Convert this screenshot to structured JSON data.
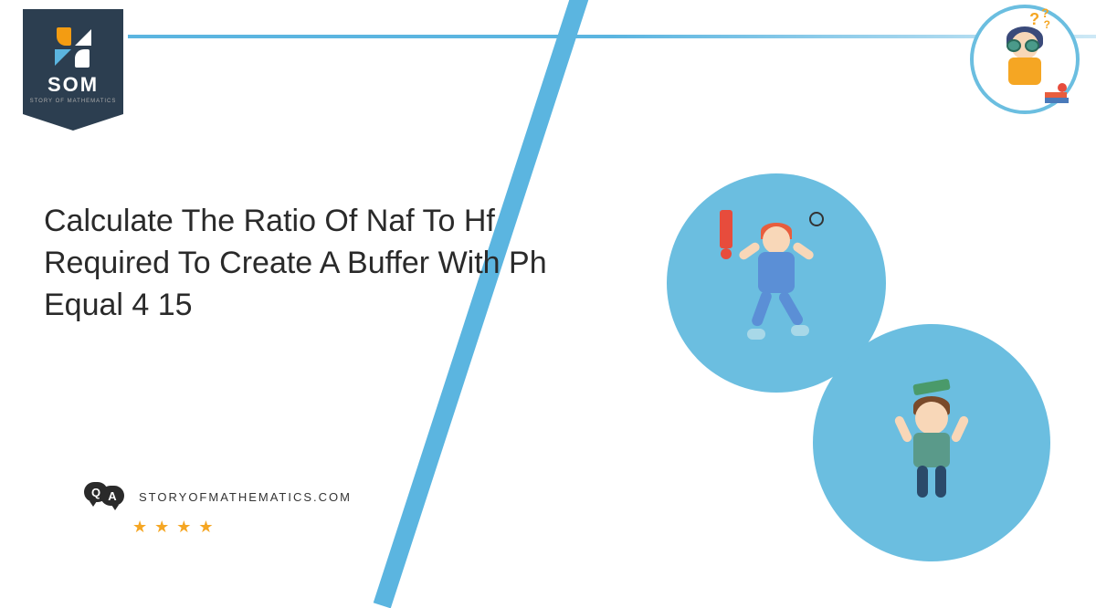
{
  "logo": {
    "text": "SOM",
    "subtitle": "STORY OF MATHEMATICS"
  },
  "title": "Calculate The Ratio Of Naf To Hf Required To Create A Buffer With Ph Equal 4 15",
  "footer": {
    "qa_q": "Q",
    "qa_a": "A",
    "url": "STORYOFMATHEMATICS.COM",
    "stars": [
      "★",
      "★",
      "★",
      "★"
    ]
  },
  "colors": {
    "accent": "#5bb5e0",
    "circle": "#6bbee0",
    "badge": "#2c3e50",
    "star": "#f5a623",
    "text": "#2a2a2a"
  }
}
